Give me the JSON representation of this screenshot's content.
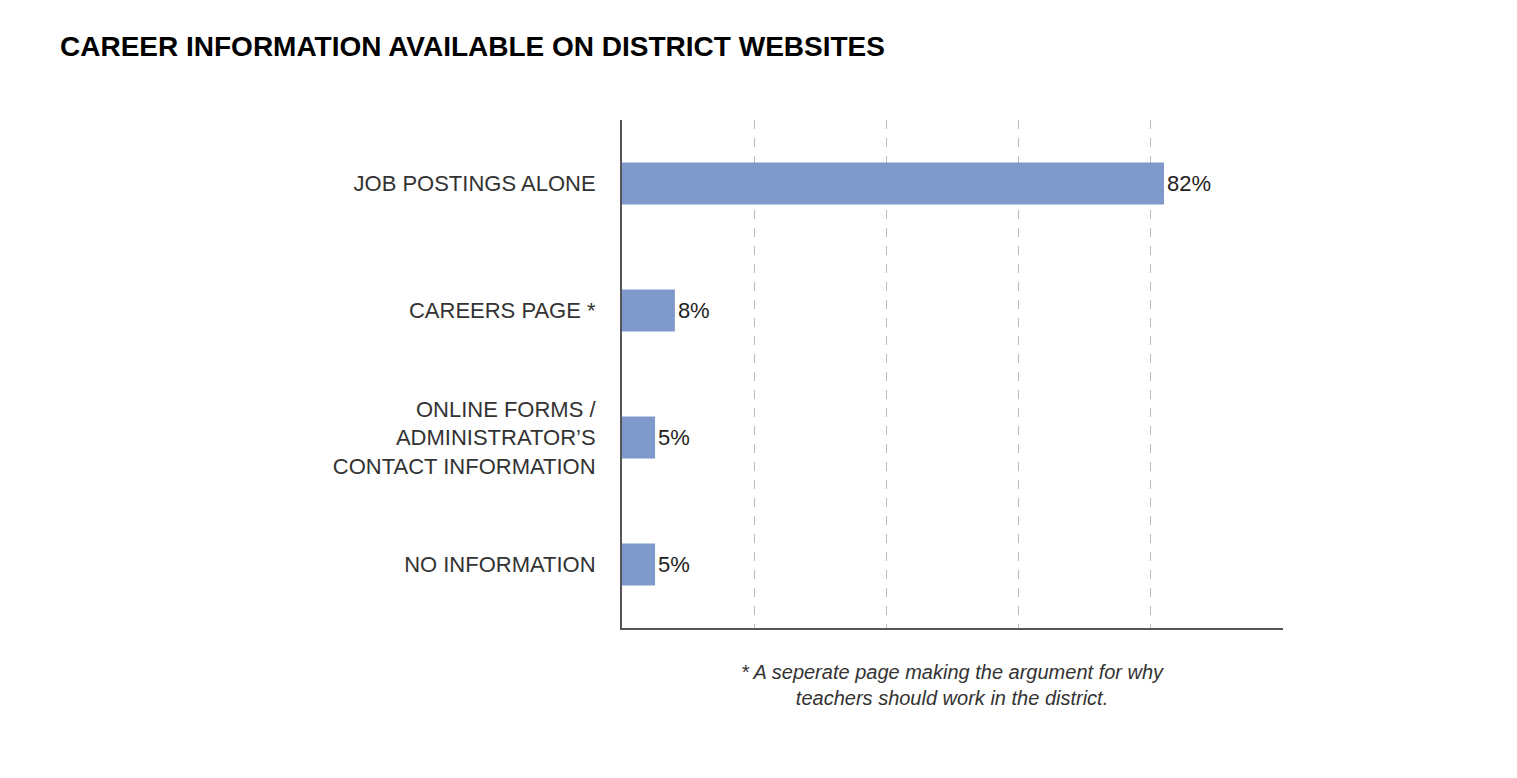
{
  "chart_data": {
    "type": "bar",
    "orientation": "horizontal",
    "title": "CAREER INFORMATION AVAILABLE ON DISTRICT WEBSITES",
    "categories": [
      "JOB POSTINGS ALONE",
      "CAREERS PAGE *",
      "ONLINE FORMS /\nADMINISTRATOR’S\nCONTACT INFORMATION",
      "NO INFORMATION"
    ],
    "values": [
      82,
      8,
      5,
      5
    ],
    "value_labels": [
      "82%",
      "8%",
      "5%",
      "5%"
    ],
    "data_labels": true,
    "color": "#7f99cc",
    "xlim": [
      0,
      100
    ],
    "xticks": [
      0,
      20,
      40,
      60,
      80,
      100
    ],
    "tick_labels": "y",
    "grid": true,
    "annotations": [
      "* A seperate page making the argument for why\nteachers should work in the district."
    ]
  }
}
